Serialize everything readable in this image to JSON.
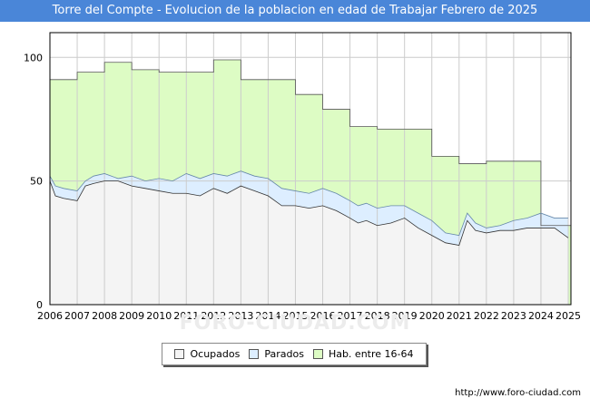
{
  "title": "Torre del Compte - Evolucion de la poblacion en edad de Trabajar Febrero de 2025",
  "footer": "http://www.foro-ciudad.com",
  "watermark": "FORO-CIUDAD.COM",
  "colors": {
    "title_bg": "#4a86d8",
    "ocupados_fill": "#f4f4f4",
    "parados_fill": "#ddeeff",
    "hab_fill": "#ddfcc4",
    "line": "#333333",
    "grid": "#cccccc"
  },
  "legend": [
    {
      "label": "Ocupados",
      "color": "#f4f4f4"
    },
    {
      "label": "Parados",
      "color": "#ddeeff"
    },
    {
      "label": "Hab. entre 16-64",
      "color": "#ddfcc4"
    }
  ],
  "chart_data": {
    "type": "area",
    "title": "Torre del Compte - Evolucion de la poblacion en edad de Trabajar Febrero de 2025",
    "xlabel": "",
    "ylabel": "",
    "xlim": [
      2006,
      2025.1
    ],
    "ylim": [
      0,
      110
    ],
    "x_ticks": [
      2006,
      2007,
      2008,
      2009,
      2010,
      2011,
      2012,
      2013,
      2014,
      2015,
      2016,
      2017,
      2018,
      2019,
      2020,
      2021,
      2022,
      2023,
      2024,
      2025
    ],
    "y_ticks": [
      0,
      50,
      100
    ],
    "grid": true,
    "legend_position": "bottom",
    "series": [
      {
        "name": "Hab. entre 16-64",
        "step": true,
        "x": [
          2006,
          2007,
          2008,
          2009,
          2010,
          2011,
          2012,
          2013,
          2014,
          2015,
          2016,
          2017,
          2018,
          2019,
          2020,
          2021,
          2022,
          2023,
          2024
        ],
        "values": [
          91,
          94,
          98,
          95,
          94,
          94,
          99,
          91,
          91,
          85,
          79,
          72,
          71,
          71,
          60,
          57,
          58,
          58,
          32
        ]
      },
      {
        "name": "Parados",
        "x": [
          2006,
          2006.2,
          2006.5,
          2007,
          2007.3,
          2007.6,
          2008,
          2008.5,
          2009,
          2009.5,
          2010,
          2010.5,
          2011,
          2011.5,
          2012,
          2012.5,
          2013,
          2013.5,
          2014,
          2014.5,
          2015,
          2015.5,
          2016,
          2016.5,
          2017,
          2017.3,
          2017.6,
          2018,
          2018.5,
          2019,
          2019.5,
          2020,
          2020.5,
          2021,
          2021.3,
          2021.6,
          2022,
          2022.5,
          2023,
          2023.5,
          2024,
          2024.5,
          2025
        ],
        "values": [
          52,
          48,
          47,
          46,
          50,
          52,
          53,
          51,
          52,
          50,
          51,
          50,
          53,
          51,
          53,
          52,
          54,
          52,
          51,
          47,
          46,
          45,
          47,
          45,
          42,
          40,
          41,
          39,
          40,
          40,
          37,
          34,
          29,
          28,
          37,
          33,
          31,
          32,
          34,
          35,
          37,
          35,
          35
        ]
      },
      {
        "name": "Ocupados",
        "x": [
          2006,
          2006.2,
          2006.5,
          2007,
          2007.3,
          2007.6,
          2008,
          2008.5,
          2009,
          2009.5,
          2010,
          2010.5,
          2011,
          2011.5,
          2012,
          2012.5,
          2013,
          2013.5,
          2014,
          2014.5,
          2015,
          2015.5,
          2016,
          2016.5,
          2017,
          2017.3,
          2017.6,
          2018,
          2018.5,
          2019,
          2019.5,
          2020,
          2020.5,
          2021,
          2021.3,
          2021.6,
          2022,
          2022.5,
          2023,
          2023.5,
          2024,
          2024.5,
          2025
        ],
        "values": [
          50,
          44,
          43,
          42,
          48,
          49,
          50,
          50,
          48,
          47,
          46,
          45,
          45,
          44,
          47,
          45,
          48,
          46,
          44,
          40,
          40,
          39,
          40,
          38,
          35,
          33,
          34,
          32,
          33,
          35,
          31,
          28,
          25,
          24,
          34,
          30,
          29,
          30,
          30,
          31,
          31,
          31,
          27
        ]
      }
    ]
  }
}
